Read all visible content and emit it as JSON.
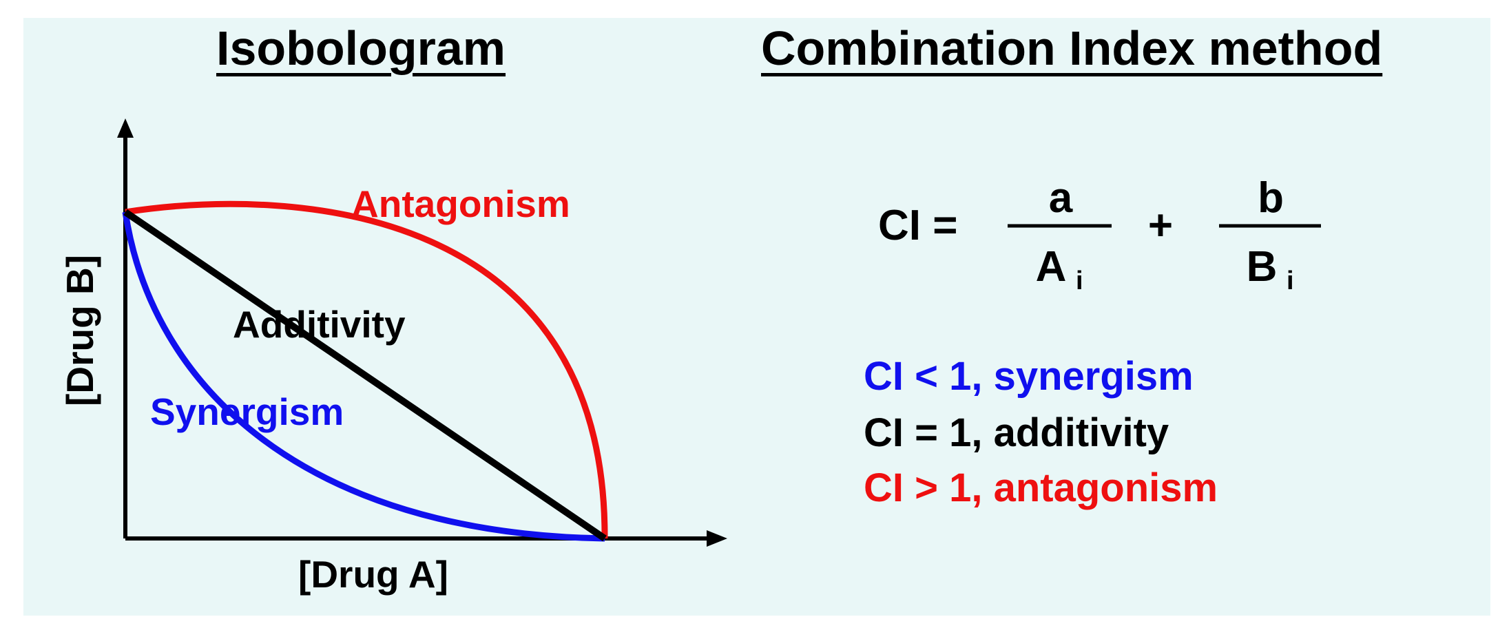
{
  "colors": {
    "background": "#e9f7f7",
    "synergism": "#1010ee",
    "additivity": "#000000",
    "antagonism": "#ee1010"
  },
  "isobologram": {
    "title": "Isobologram",
    "x_axis_label": "[Drug A]",
    "y_axis_label": "[Drug B]",
    "curves": {
      "antagonism_label": "Antagonism",
      "additivity_label": "Additivity",
      "synergism_label": "Synergism"
    }
  },
  "ci_method": {
    "title": "Combination Index method",
    "formula": {
      "lhs": "CI =",
      "term1_numerator": "a",
      "term1_denominator": "A",
      "term1_subscript": "i",
      "operator": "+",
      "term2_numerator": "b",
      "term2_denominator": "B",
      "term2_subscript": "i"
    },
    "rules": [
      {
        "text": "CI < 1, synergism",
        "color": "#1010ee"
      },
      {
        "text": "CI = 1, additivity",
        "color": "#000000"
      },
      {
        "text": "CI > 1, antagonism",
        "color": "#ee1010"
      }
    ]
  }
}
